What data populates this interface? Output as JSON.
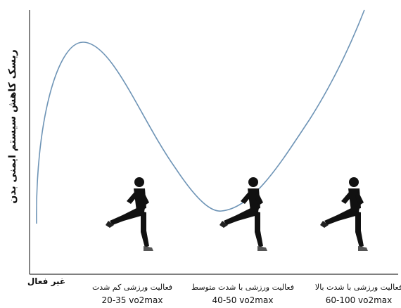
{
  "y_axis_label": "ریسک کاهش سیستم ایمنی بدن",
  "x_labels": {
    "inactive": "غیر فعال",
    "levels": [
      {
        "name": "فعالیت ورزشی کم شدت",
        "range": "20-35 vo2max"
      },
      {
        "name": "فعالیت ورزشی با شدت متوسط",
        "range": "40-50 vo2max"
      },
      {
        "name": "فعالیت ورزشی با شدت بالا",
        "range": "60-100 vo2max"
      }
    ]
  }
}
